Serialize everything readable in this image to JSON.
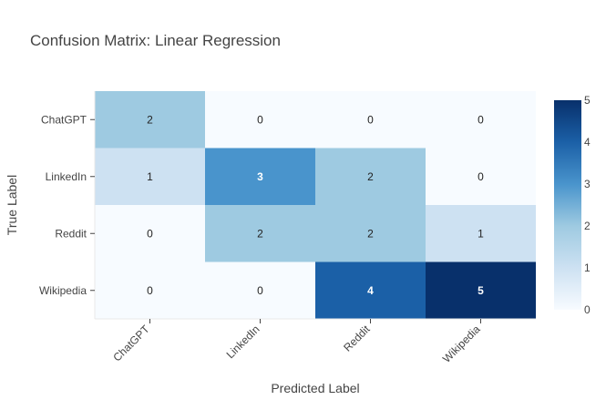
{
  "chart_data": {
    "type": "heatmap",
    "title": "Confusion Matrix: Linear Regression",
    "xlabel": "Predicted Label",
    "ylabel": "True Label",
    "x_categories": [
      "ChatGPT",
      "LinkedIn",
      "Reddit",
      "Wikipedia"
    ],
    "y_categories": [
      "ChatGPT",
      "LinkedIn",
      "Reddit",
      "Wikipedia"
    ],
    "values": [
      [
        2,
        0,
        0,
        0
      ],
      [
        1,
        3,
        2,
        0
      ],
      [
        0,
        2,
        2,
        1
      ],
      [
        0,
        0,
        4,
        5
      ]
    ],
    "colorscale": "Blues",
    "zlim": [
      0,
      5
    ],
    "colorbar_ticks": [
      0,
      1,
      2,
      3,
      4,
      5
    ]
  }
}
